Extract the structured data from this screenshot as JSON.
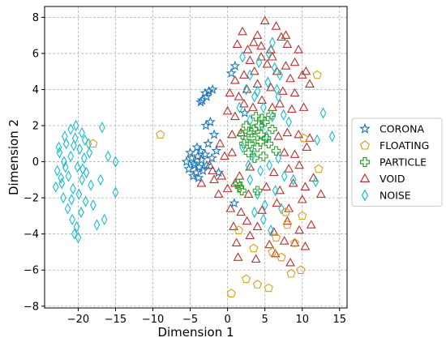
{
  "chart_data": {
    "type": "scatter",
    "xlabel": "Dimension 1",
    "ylabel": "Dimension 2",
    "xlim": [
      -24.5,
      16
    ],
    "ylim": [
      -8.1,
      8.6
    ],
    "xticks": [
      -20,
      -15,
      -10,
      -5,
      0,
      5,
      10,
      15
    ],
    "yticks": [
      -8,
      -6,
      -4,
      -2,
      0,
      2,
      4,
      6,
      8
    ],
    "xtick_labels": [
      "−20",
      "−15",
      "−10",
      "−5",
      "0",
      "5",
      "10",
      "15"
    ],
    "ytick_labels": [
      "−8",
      "−6",
      "−4",
      "−2",
      "0",
      "2",
      "4",
      "6",
      "8"
    ],
    "grid": true,
    "legend_position": "outside-right",
    "series": [
      {
        "name": "CORONA",
        "marker": "star",
        "color": "#1f77b4",
        "points": [
          [
            -5.2,
            -0.4
          ],
          [
            -4.8,
            0.2
          ],
          [
            -4.5,
            -0.1
          ],
          [
            -4.2,
            -0.6
          ],
          [
            -4.0,
            0.3
          ],
          [
            -3.8,
            -0.3
          ],
          [
            -3.5,
            0.1
          ],
          [
            -3.3,
            -0.5
          ],
          [
            -3.0,
            0.4
          ],
          [
            -2.8,
            -0.2
          ],
          [
            -4.6,
            -0.8
          ],
          [
            -5.5,
            0.0
          ],
          [
            -3.9,
            -0.9
          ],
          [
            -3.6,
            0.6
          ],
          [
            -4.1,
            0.8
          ],
          [
            -3.4,
            3.4
          ],
          [
            -3.0,
            3.8
          ],
          [
            -2.5,
            3.9
          ],
          [
            -2.0,
            4.0
          ],
          [
            -2.8,
            3.6
          ],
          [
            -3.6,
            3.3
          ],
          [
            -2.3,
            2.2
          ],
          [
            -2.9,
            2.0
          ],
          [
            -2.6,
            1.0
          ],
          [
            -1.8,
            1.5
          ],
          [
            -1.5,
            0.6
          ],
          [
            -2.1,
            0.2
          ],
          [
            1.0,
            5.3
          ],
          [
            0.5,
            4.9
          ],
          [
            2.3,
            2.7
          ],
          [
            0.9,
            -2.3
          ],
          [
            -1.2,
            -0.6
          ],
          [
            -4.4,
            -0.2
          ],
          [
            -5.0,
            0.5
          ]
        ]
      },
      {
        "name": "FLOATING",
        "marker": "pentagon",
        "color": "#d9a01a",
        "points": [
          [
            -9.0,
            1.5
          ],
          [
            -18.0,
            1.0
          ],
          [
            12.0,
            4.8
          ],
          [
            12.2,
            -0.4
          ],
          [
            10.2,
            1.3
          ],
          [
            2.5,
            -6.5
          ],
          [
            4.0,
            -6.8
          ],
          [
            5.5,
            -7.0
          ],
          [
            8.5,
            -6.2
          ],
          [
            9.8,
            -6.0
          ],
          [
            6.0,
            -5.0
          ],
          [
            7.2,
            -5.3
          ],
          [
            3.5,
            -4.8
          ],
          [
            8.0,
            -3.5
          ],
          [
            9.0,
            -4.5
          ],
          [
            1.5,
            -3.8
          ],
          [
            0.5,
            -7.3
          ],
          [
            6.5,
            -4.2
          ],
          [
            7.8,
            -2.8
          ],
          [
            10.0,
            -3.0
          ]
        ]
      },
      {
        "name": "PARTICLE",
        "marker": "plus",
        "color": "#2ca02c",
        "points": [
          [
            2.0,
            1.5
          ],
          [
            2.5,
            2.0
          ],
          [
            3.0,
            1.0
          ],
          [
            3.5,
            1.8
          ],
          [
            4.0,
            0.8
          ],
          [
            4.5,
            1.5
          ],
          [
            5.0,
            2.2
          ],
          [
            5.5,
            1.0
          ],
          [
            6.0,
            1.8
          ],
          [
            2.8,
            0.5
          ],
          [
            3.8,
            2.5
          ],
          [
            4.8,
            0.3
          ],
          [
            5.2,
            1.3
          ],
          [
            3.2,
            1.3
          ],
          [
            4.2,
            2.0
          ],
          [
            2.2,
            1.0
          ],
          [
            5.8,
            2.6
          ],
          [
            6.5,
            0.6
          ],
          [
            3.6,
            0.2
          ],
          [
            4.4,
            1.1
          ],
          [
            1.6,
            -1.4
          ],
          [
            1.9,
            -1.6
          ],
          [
            1.4,
            -1.2
          ],
          [
            4.0,
            -1.6
          ],
          [
            3.2,
            1.6
          ],
          [
            4.6,
            2.4
          ]
        ]
      },
      {
        "name": "VOID",
        "marker": "triangle",
        "color": "#b5322c",
        "points": [
          [
            2.0,
            7.2
          ],
          [
            3.5,
            6.6
          ],
          [
            5.0,
            7.8
          ],
          [
            6.5,
            7.5
          ],
          [
            7.2,
            6.9
          ],
          [
            4.5,
            6.4
          ],
          [
            8.0,
            6.5
          ],
          [
            9.5,
            6.2
          ],
          [
            6.0,
            5.8
          ],
          [
            3.0,
            5.6
          ],
          [
            4.5,
            5.8
          ],
          [
            7.8,
            5.3
          ],
          [
            9.0,
            5.5
          ],
          [
            10.5,
            5.0
          ],
          [
            1.0,
            4.5
          ],
          [
            2.2,
            4.8
          ],
          [
            3.6,
            5.0
          ],
          [
            5.3,
            5.4
          ],
          [
            6.6,
            5.0
          ],
          [
            8.4,
            4.6
          ],
          [
            10.0,
            4.8
          ],
          [
            0.3,
            3.8
          ],
          [
            1.5,
            3.6
          ],
          [
            2.6,
            4.0
          ],
          [
            4.0,
            4.3
          ],
          [
            5.8,
            4.1
          ],
          [
            7.4,
            3.9
          ],
          [
            9.0,
            3.8
          ],
          [
            11.0,
            4.3
          ],
          [
            0.0,
            2.8
          ],
          [
            1.0,
            2.5
          ],
          [
            2.2,
            3.2
          ],
          [
            3.4,
            3.0
          ],
          [
            4.6,
            3.4
          ],
          [
            6.0,
            3.0
          ],
          [
            7.0,
            3.2
          ],
          [
            8.6,
            2.9
          ],
          [
            10.2,
            3.0
          ],
          [
            0.6,
            1.5
          ],
          [
            1.8,
            1.6
          ],
          [
            6.8,
            1.4
          ],
          [
            8.0,
            1.6
          ],
          [
            9.5,
            1.5
          ],
          [
            11.0,
            1.3
          ],
          [
            -1.0,
            1.0
          ],
          [
            -0.4,
            0.3
          ],
          [
            0.6,
            0.5
          ],
          [
            7.6,
            0.5
          ],
          [
            9.0,
            0.4
          ],
          [
            10.6,
            0.8
          ],
          [
            -2.0,
            -0.5
          ],
          [
            -0.8,
            -0.8
          ],
          [
            1.6,
            -0.8
          ],
          [
            3.0,
            -0.3
          ],
          [
            6.2,
            -0.6
          ],
          [
            8.2,
            -0.4
          ],
          [
            9.6,
            -0.2
          ],
          [
            11.5,
            -0.9
          ],
          [
            -3.5,
            -1.2
          ],
          [
            -1.8,
            -1.0
          ],
          [
            0.0,
            -1.5
          ],
          [
            1.0,
            -1.2
          ],
          [
            2.8,
            -1.8
          ],
          [
            5.2,
            -1.4
          ],
          [
            7.0,
            -1.6
          ],
          [
            8.8,
            -1.2
          ],
          [
            10.4,
            -1.4
          ],
          [
            12.5,
            -1.8
          ],
          [
            0.4,
            -2.6
          ],
          [
            1.8,
            -2.8
          ],
          [
            4.6,
            -2.7
          ],
          [
            6.6,
            -2.3
          ],
          [
            8.2,
            -2.6
          ],
          [
            10.0,
            -2.1
          ],
          [
            0.8,
            -3.6
          ],
          [
            2.6,
            -3.3
          ],
          [
            4.0,
            -3.6
          ],
          [
            6.2,
            -3.9
          ],
          [
            8.0,
            -3.3
          ],
          [
            9.6,
            -3.8
          ],
          [
            11.2,
            -3.5
          ],
          [
            1.2,
            -4.5
          ],
          [
            3.0,
            -4.1
          ],
          [
            5.6,
            -4.6
          ],
          [
            7.6,
            -4.4
          ],
          [
            9.0,
            -4.5
          ],
          [
            10.4,
            -4.7
          ],
          [
            1.4,
            -5.3
          ],
          [
            3.8,
            -5.4
          ],
          [
            6.4,
            -5.1
          ],
          [
            8.4,
            -5.6
          ],
          [
            -2.4,
            -0.2
          ],
          [
            -1.2,
            -1.8
          ],
          [
            5.8,
            6.2
          ],
          [
            7.8,
            7.0
          ],
          [
            2.7,
            6.2
          ],
          [
            4.0,
            7.0
          ],
          [
            1.3,
            6.5
          ]
        ]
      },
      {
        "name": "NOISE",
        "marker": "diamond",
        "color": "#17becf",
        "points": [
          [
            -22.8,
            -0.5
          ],
          [
            -22.5,
            0.5
          ],
          [
            -22.2,
            -1.2
          ],
          [
            -21.9,
            0.0
          ],
          [
            -21.6,
            1.0
          ],
          [
            -21.3,
            -0.8
          ],
          [
            -21.0,
            0.3
          ],
          [
            -20.7,
            -1.5
          ],
          [
            -20.4,
            1.3
          ],
          [
            -20.1,
            -0.3
          ],
          [
            -19.8,
            0.7
          ],
          [
            -19.5,
            -1.0
          ],
          [
            -19.2,
            0.2
          ],
          [
            -18.9,
            -0.6
          ],
          [
            -18.6,
            1.0
          ],
          [
            -18.3,
            -1.3
          ],
          [
            -22.0,
            -2.0
          ],
          [
            -21.4,
            -2.6
          ],
          [
            -20.8,
            -3.2
          ],
          [
            -20.2,
            -3.6
          ],
          [
            -19.6,
            -2.8
          ],
          [
            -19.0,
            -2.2
          ],
          [
            -20.5,
            -4.0
          ],
          [
            -21.0,
            1.8
          ],
          [
            -20.3,
            2.0
          ],
          [
            -19.5,
            1.6
          ],
          [
            -19.1,
            1.2
          ],
          [
            -22.6,
            0.8
          ],
          [
            -23.0,
            -1.4
          ],
          [
            -21.7,
            -0.3
          ],
          [
            -20.9,
            -2.1
          ],
          [
            -19.9,
            -1.8
          ],
          [
            -18.0,
            -2.4
          ],
          [
            -17.5,
            -3.5
          ],
          [
            -16.8,
            1.9
          ],
          [
            -16.5,
            -3.2
          ],
          [
            -15.0,
            -1.7
          ],
          [
            -15.0,
            0.0
          ],
          [
            -16.0,
            0.3
          ],
          [
            -17.0,
            -1.0
          ],
          [
            -18.5,
            0.5
          ],
          [
            -20.0,
            -4.2
          ],
          [
            -21.8,
            1.4
          ],
          [
            -20.6,
            0.9
          ],
          [
            -19.4,
            -0.4
          ],
          [
            -22.3,
            -0.9
          ],
          [
            2.0,
            5.8
          ],
          [
            3.0,
            4.8
          ],
          [
            4.2,
            5.5
          ],
          [
            5.5,
            6.0
          ],
          [
            6.3,
            5.2
          ],
          [
            2.5,
            4.0
          ],
          [
            3.6,
            3.6
          ],
          [
            4.8,
            3.0
          ],
          [
            5.4,
            4.4
          ],
          [
            6.8,
            3.6
          ],
          [
            7.5,
            2.6
          ],
          [
            3.0,
            2.3
          ],
          [
            4.6,
            2.0
          ],
          [
            6.0,
            2.5
          ],
          [
            2.0,
            0.8
          ],
          [
            3.4,
            0.4
          ],
          [
            4.4,
            -0.5
          ],
          [
            5.6,
            -0.2
          ],
          [
            6.8,
            0.2
          ],
          [
            7.6,
            -0.8
          ],
          [
            3.0,
            -1.0
          ],
          [
            4.0,
            -1.8
          ],
          [
            5.0,
            -2.4
          ],
          [
            6.4,
            -1.6
          ],
          [
            3.6,
            -2.8
          ],
          [
            4.8,
            -3.2
          ],
          [
            5.8,
            -3.8
          ],
          [
            7.2,
            -2.6
          ],
          [
            11.8,
            -1.1
          ],
          [
            12.8,
            2.7
          ],
          [
            14.0,
            1.4
          ],
          [
            12.0,
            1.2
          ],
          [
            8.2,
            2.2
          ],
          [
            6.0,
            6.6
          ],
          [
            1.6,
            3.0
          ],
          [
            7.0,
            4.8
          ],
          [
            2.8,
            -0.2
          ],
          [
            8.8,
            -1.0
          ],
          [
            5.2,
            1.4
          ],
          [
            4.0,
            3.9
          ],
          [
            6.6,
            4.0
          ]
        ]
      }
    ]
  }
}
